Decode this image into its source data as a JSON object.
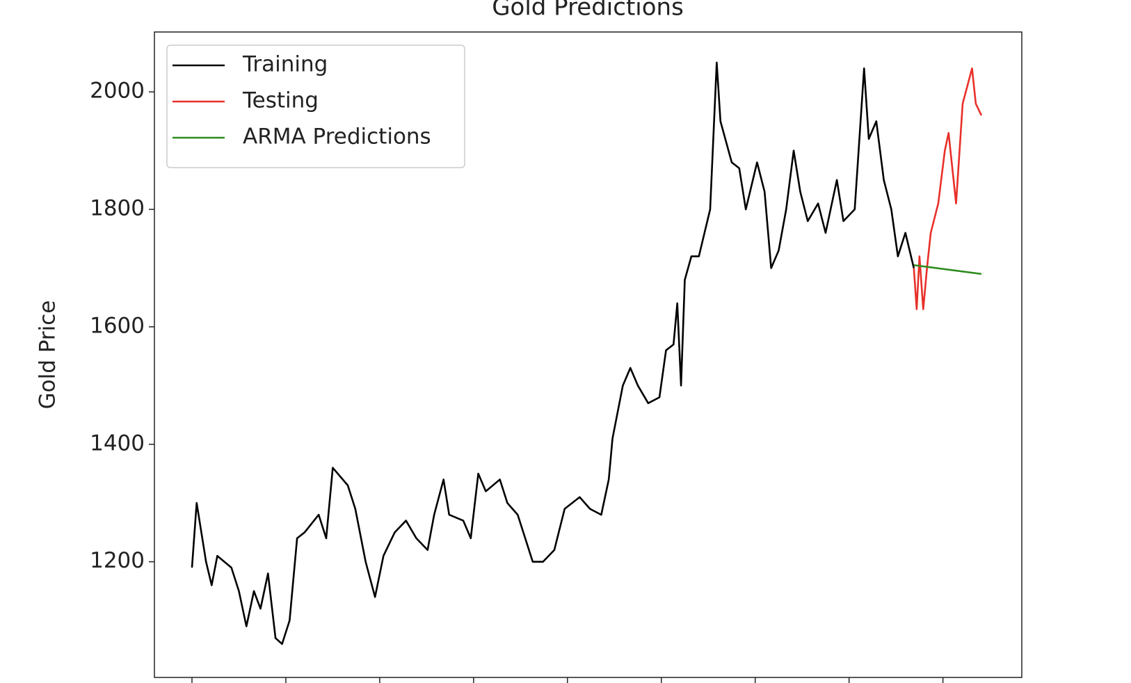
{
  "chart_data": {
    "type": "line",
    "title": "Gold Predictions",
    "ylabel": "Gold Price",
    "xlim": [
      -0.4,
      8.84
    ],
    "xticks": [
      0,
      1,
      2,
      3,
      4,
      5,
      6,
      7,
      8
    ],
    "ylim": [
      1003,
      2102
    ],
    "yticks": [
      1200,
      1400,
      1600,
      1800,
      2000
    ],
    "legend": "upper left",
    "series": [
      {
        "name": "Training",
        "color": "#000000",
        "x": [
          0,
          0.05,
          0.15,
          0.21,
          0.27,
          0.42,
          0.5,
          0.58,
          0.66,
          0.73,
          0.81,
          0.89,
          0.96,
          1.04,
          1.12,
          1.2,
          1.35,
          1.43,
          1.5,
          1.66,
          1.74,
          1.85,
          1.95,
          2.04,
          2.16,
          2.28,
          2.39,
          2.51,
          2.58,
          2.68,
          2.74,
          2.89,
          2.97,
          3.05,
          3.13,
          3.28,
          3.36,
          3.47,
          3.63,
          3.74,
          3.86,
          3.97,
          4.13,
          4.24,
          4.36,
          4.44,
          4.48,
          4.59,
          4.67,
          4.75,
          4.86,
          4.98,
          5.05,
          5.13,
          5.17,
          5.21,
          5.25,
          5.32,
          5.4,
          5.52,
          5.59,
          5.63,
          5.75,
          5.83,
          5.9,
          6.02,
          6.1,
          6.17,
          6.25,
          6.33,
          6.41,
          6.48,
          6.56,
          6.67,
          6.75,
          6.87,
          6.94,
          7.06,
          7.16,
          7.21,
          7.29,
          7.37,
          7.45,
          7.52,
          7.6,
          7.69
        ],
        "values": [
          1190,
          1300,
          1200,
          1160,
          1210,
          1190,
          1150,
          1090,
          1150,
          1120,
          1180,
          1070,
          1060,
          1100,
          1240,
          1250,
          1280,
          1240,
          1360,
          1330,
          1290,
          1200,
          1140,
          1210,
          1250,
          1270,
          1240,
          1220,
          1280,
          1340,
          1280,
          1270,
          1240,
          1350,
          1320,
          1340,
          1300,
          1280,
          1200,
          1200,
          1220,
          1290,
          1310,
          1290,
          1280,
          1340,
          1410,
          1500,
          1530,
          1500,
          1470,
          1480,
          1560,
          1570,
          1640,
          1500,
          1680,
          1720,
          1720,
          1800,
          2050,
          1950,
          1880,
          1870,
          1800,
          1880,
          1830,
          1700,
          1730,
          1800,
          1900,
          1830,
          1780,
          1810,
          1760,
          1850,
          1780,
          1800,
          2040,
          1920,
          1950,
          1850,
          1800,
          1720,
          1760,
          1700
        ]
      },
      {
        "name": "Testing",
        "color": "#e8302a",
        "x": [
          7.69,
          7.72,
          7.75,
          7.79,
          7.83,
          7.87,
          7.95,
          8.02,
          8.06,
          8.14,
          8.21,
          8.31,
          8.35,
          8.41
        ],
        "values": [
          1700,
          1630,
          1720,
          1630,
          1700,
          1760,
          1810,
          1900,
          1930,
          1810,
          1980,
          2040,
          1980,
          1960
        ]
      },
      {
        "name": "ARMA Predictions",
        "color": "#2e8b1e",
        "x": [
          7.69,
          8.41
        ],
        "values": [
          1705,
          1690
        ]
      }
    ]
  }
}
